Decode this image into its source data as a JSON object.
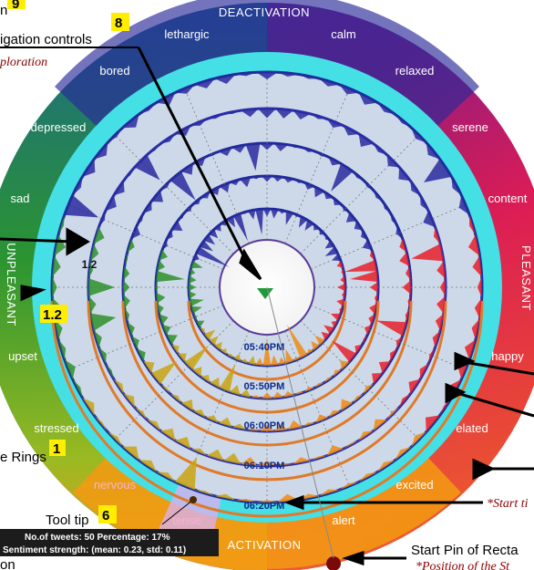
{
  "diagram": {
    "axis_top": "DEACTIVATION",
    "axis_bottom": "ACTIVATION",
    "axis_right": "PLEASANT",
    "axis_left": "UNPLEASANT",
    "emotions": [
      "lethargic",
      "calm",
      "bored",
      "relaxed",
      "depressed",
      "serene",
      "sad",
      "content",
      "upset",
      "happy",
      "stressed",
      "elated",
      "nervous",
      "excited",
      "tense",
      "alert"
    ],
    "ring_times": [
      "05:40PM",
      "05:50PM",
      "06:00PM",
      "06:10PM",
      "06:20PM"
    ],
    "ring_scale_label": "1.2"
  },
  "annotations": {
    "num_9": "9",
    "partial_n": "n",
    "nav_number": "8",
    "nav_text": "igation controls",
    "exploration": "ploration",
    "callout_1_2": "1.2",
    "rings_text": "e Rings",
    "rings_number": "1",
    "tooltip_text": "Tool tip",
    "tooltip_number": "6",
    "partial_on": "on",
    "start_pin": "Start Pin of Recta",
    "position_of": "*Position of the St",
    "start_ti": "*Start ti"
  },
  "tooltip": {
    "line1": "No.of tweets: 50  Percentage: 17%",
    "line2": "Sentiment strength: (mean: 0.23,  std: 0.11)"
  },
  "colors": {
    "outer_top": "#1d2b8f",
    "outer_pleasant": "#e8202a",
    "outer_activation": "#f39a12",
    "outer_unpleasant": "#2f9a2c",
    "teal": "#44e0e6",
    "ring_fill": "#cdd9e8",
    "highlight": "#d9b0ee"
  }
}
